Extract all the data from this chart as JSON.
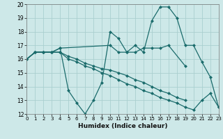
{
  "xlabel": "Humidex (Indice chaleur)",
  "bg_color": "#cde8e8",
  "line_color": "#1a6b6b",
  "grid_color": "#aacfcf",
  "xlim": [
    0,
    23
  ],
  "ylim": [
    12,
    20
  ],
  "xticks": [
    0,
    1,
    2,
    3,
    4,
    5,
    6,
    7,
    8,
    9,
    10,
    11,
    12,
    13,
    14,
    15,
    16,
    17,
    18,
    19,
    20,
    21,
    22,
    23
  ],
  "yticks": [
    12,
    13,
    14,
    15,
    16,
    17,
    18,
    19,
    20
  ],
  "lines": [
    {
      "x": [
        0,
        1,
        2,
        3,
        4,
        5,
        6,
        7,
        8,
        9,
        10,
        11,
        12,
        13,
        14,
        15,
        16,
        17,
        18,
        19,
        20,
        21,
        22,
        23
      ],
      "y": [
        16.0,
        16.5,
        16.5,
        16.5,
        16.8,
        13.7,
        12.8,
        12.0,
        13.0,
        14.3,
        18.0,
        17.5,
        16.5,
        17.0,
        16.5,
        18.8,
        19.8,
        19.8,
        19.0,
        17.0,
        17.0,
        15.8,
        14.7,
        12.5
      ]
    },
    {
      "x": [
        0,
        1,
        2,
        3,
        4,
        10,
        11,
        12,
        13,
        14,
        15,
        16,
        17,
        19
      ],
      "y": [
        16.0,
        16.5,
        16.5,
        16.5,
        16.8,
        17.0,
        16.5,
        16.5,
        16.5,
        16.8,
        16.8,
        16.8,
        17.0,
        15.5
      ]
    },
    {
      "x": [
        0,
        1,
        2,
        3,
        4,
        5,
        6,
        7,
        8,
        9,
        10,
        11,
        12,
        13,
        14,
        15,
        16,
        17,
        18,
        19
      ],
      "y": [
        16.0,
        16.5,
        16.5,
        16.5,
        16.5,
        16.2,
        16.0,
        15.7,
        15.5,
        15.3,
        15.2,
        15.0,
        14.8,
        14.5,
        14.3,
        14.0,
        13.7,
        13.5,
        13.2,
        13.0
      ]
    },
    {
      "x": [
        0,
        1,
        2,
        3,
        4,
        5,
        6,
        7,
        8,
        9,
        10,
        11,
        12,
        13,
        14,
        15,
        16,
        17,
        18,
        19,
        20,
        21,
        22,
        23
      ],
      "y": [
        16.0,
        16.5,
        16.5,
        16.5,
        16.5,
        16.0,
        15.8,
        15.5,
        15.3,
        15.0,
        14.8,
        14.5,
        14.2,
        14.0,
        13.7,
        13.5,
        13.2,
        13.0,
        12.8,
        12.5,
        12.3,
        13.0,
        13.5,
        12.5
      ]
    }
  ]
}
